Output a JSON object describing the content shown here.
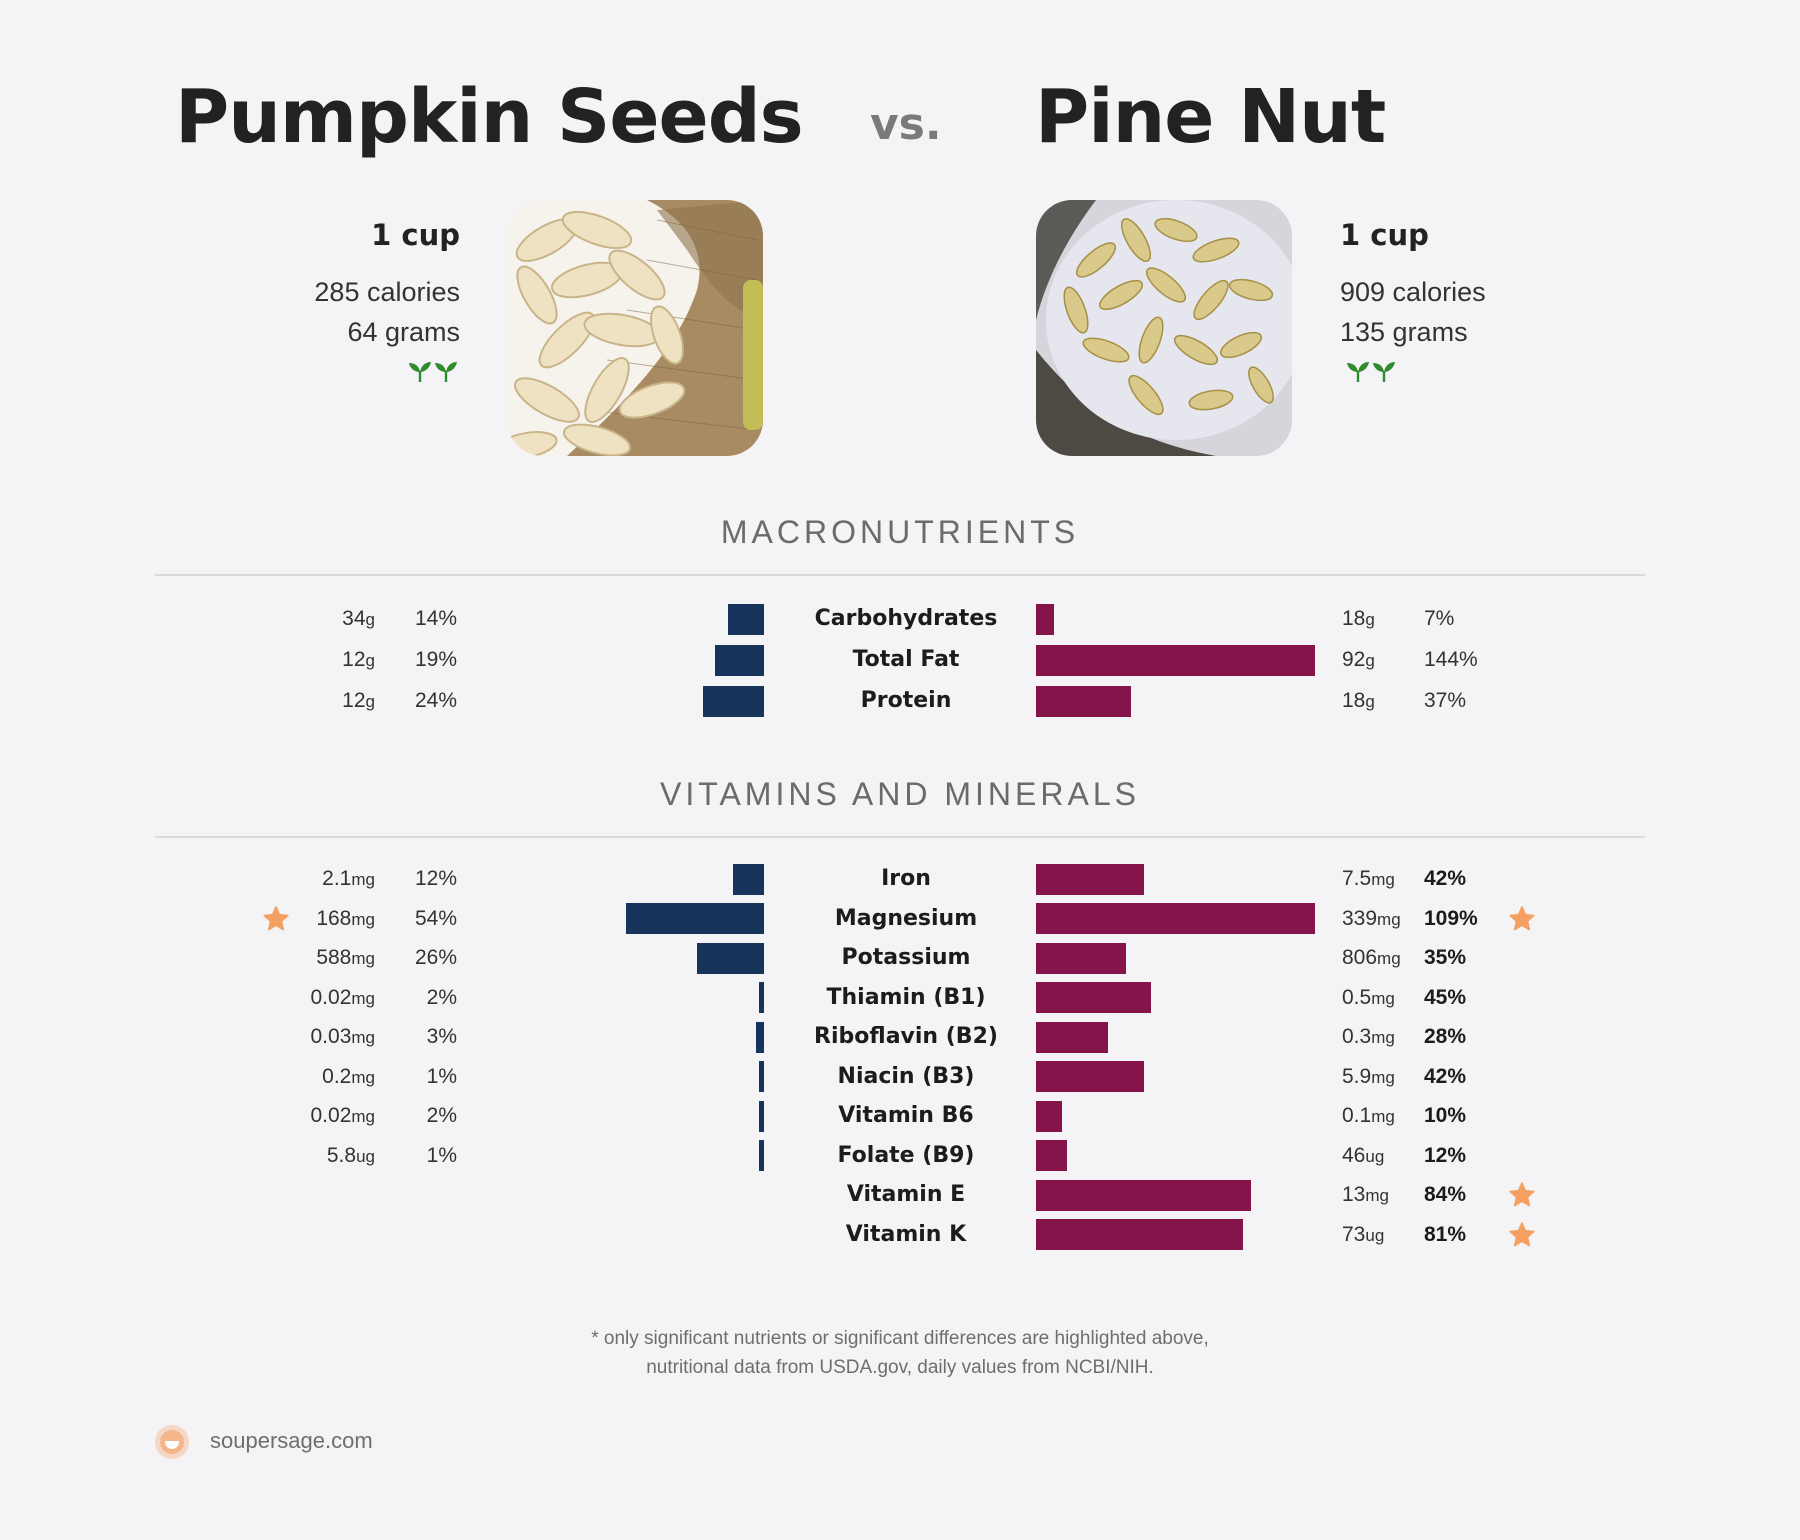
{
  "colors": {
    "left": "#17355c",
    "right": "#85144b",
    "star": "#f4a062",
    "leaf": "#2e8b2e"
  },
  "left": {
    "name": "Pumpkin Seeds",
    "serving": "1 cup",
    "calories": "285 calories",
    "grams": "64 grams",
    "badge_icon": "sprout-icon"
  },
  "vs": "vs.",
  "right": {
    "name": "Pine Nut",
    "serving": "1 cup",
    "calories": "909 calories",
    "grams": "135 grams",
    "badge_icon": "sprout-icon"
  },
  "sections": {
    "macros_title": "MACRONUTRIENTS",
    "vitamins_title": "VITAMINS AND MINERALS"
  },
  "footer": {
    "line1": "* only significant nutrients or significant differences are highlighted above,",
    "line2": "nutritional data from USDA.gov, daily values from NCBI/NIH.",
    "brand": "soupersage.com"
  },
  "chart_data": [
    {
      "type": "bar",
      "title": "MACRONUTRIENTS",
      "categories": [
        "Carbohydrates",
        "Total Fat",
        "Protein"
      ],
      "series": [
        {
          "name": "Pumpkin Seeds",
          "amounts": [
            "34",
            "12",
            "12"
          ],
          "units": [
            "g",
            "g",
            "g"
          ],
          "values": [
            14,
            19,
            24
          ],
          "starred": [
            false,
            false,
            false
          ]
        },
        {
          "name": "Pine Nut",
          "amounts": [
            "18",
            "92",
            "18"
          ],
          "units": [
            "g",
            "g",
            "g"
          ],
          "values": [
            7,
            144,
            37
          ],
          "starred": [
            false,
            false,
            false
          ]
        }
      ]
    },
    {
      "type": "bar",
      "title": "VITAMINS AND MINERALS",
      "categories": [
        "Iron",
        "Magnesium",
        "Potassium",
        "Thiamin (B1)",
        "Riboflavin (B2)",
        "Niacin (B3)",
        "Vitamin B6",
        "Folate (B9)",
        "Vitamin E",
        "Vitamin K"
      ],
      "series": [
        {
          "name": "Pumpkin Seeds",
          "amounts": [
            "2.1",
            "168",
            "588",
            "0.02",
            "0.03",
            "0.2",
            "0.02",
            "5.8",
            null,
            null
          ],
          "units": [
            "mg",
            "mg",
            "mg",
            "mg",
            "mg",
            "mg",
            "mg",
            "ug",
            null,
            null
          ],
          "values": [
            12,
            54,
            26,
            2,
            3,
            1,
            2,
            1,
            null,
            null
          ],
          "starred": [
            false,
            true,
            false,
            false,
            false,
            false,
            false,
            false,
            false,
            false
          ]
        },
        {
          "name": "Pine Nut",
          "amounts": [
            "7.5",
            "339",
            "806",
            "0.5",
            "0.3",
            "5.9",
            "0.1",
            "46",
            "13",
            "73"
          ],
          "units": [
            "mg",
            "mg",
            "mg",
            "mg",
            "mg",
            "mg",
            "mg",
            "ug",
            "mg",
            "ug"
          ],
          "values": [
            42,
            109,
            35,
            45,
            28,
            42,
            10,
            12,
            84,
            81
          ],
          "starred": [
            false,
            true,
            false,
            false,
            false,
            false,
            false,
            false,
            true,
            true
          ]
        }
      ]
    }
  ]
}
